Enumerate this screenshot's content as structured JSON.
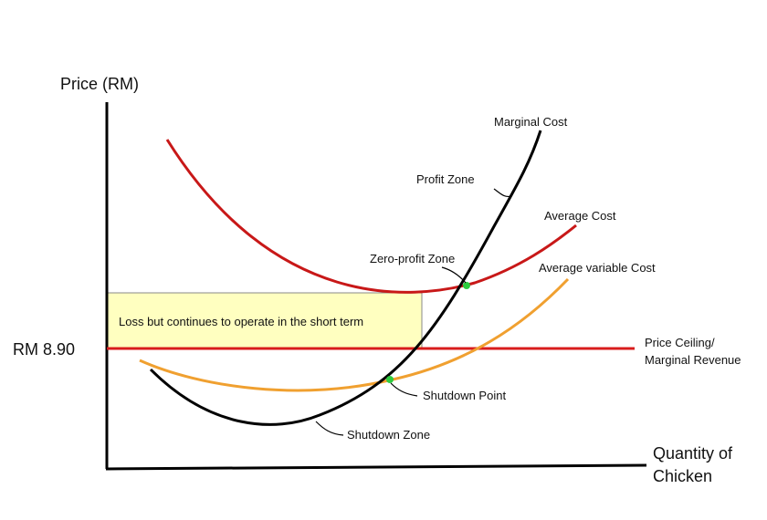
{
  "axes": {
    "y_label": "Price (RM)",
    "x_label_line1": "Quantity of",
    "x_label_line2": "Chicken"
  },
  "price_marker": {
    "label": "RM 8.90"
  },
  "curves": {
    "marginal_cost": {
      "label": "Marginal Cost",
      "color": "#000000"
    },
    "average_cost": {
      "label": "Average Cost",
      "color": "#c81818"
    },
    "average_variable_cost": {
      "label": "Average variable Cost",
      "color": "#f0a030"
    },
    "price_ceiling": {
      "label_line1": "Price Ceiling/",
      "label_line2": "Marginal Revenue",
      "color": "#d81c1c"
    }
  },
  "annotations": {
    "profit_zone": "Profit Zone",
    "zero_profit_zone": "Zero-profit Zone",
    "shutdown_point": "Shutdown Point",
    "shutdown_zone": "Shutdown Zone"
  },
  "loss_box": {
    "text": "Loss but continues to operate in the short term",
    "fill": "#ffffc0"
  },
  "point_color": "#2ecc40"
}
